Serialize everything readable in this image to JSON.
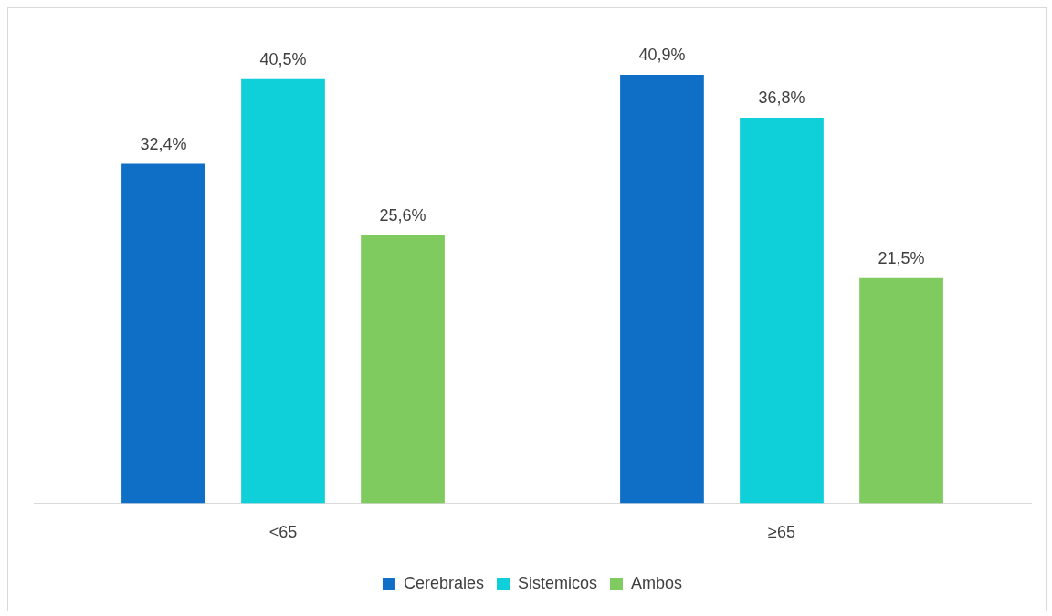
{
  "chart_data": {
    "type": "bar",
    "categories": [
      "<65",
      "≥65"
    ],
    "series": [
      {
        "name": "Cerebrales",
        "color": "#0f6fc6",
        "values": [
          32.4,
          40.9
        ],
        "value_labels": [
          "32,4%",
          "40,9%"
        ]
      },
      {
        "name": "Sistemicos",
        "color": "#0fcfd9",
        "values": [
          40.5,
          36.8
        ],
        "value_labels": [
          "40,5%",
          "36,8%"
        ]
      },
      {
        "name": "Ambos",
        "color": "#7fcb5f",
        "values": [
          25.6,
          21.5
        ],
        "value_labels": [
          "25,6%",
          "21,5%"
        ]
      }
    ],
    "legend": "bottom",
    "grid": false,
    "tick_labels": "x"
  }
}
